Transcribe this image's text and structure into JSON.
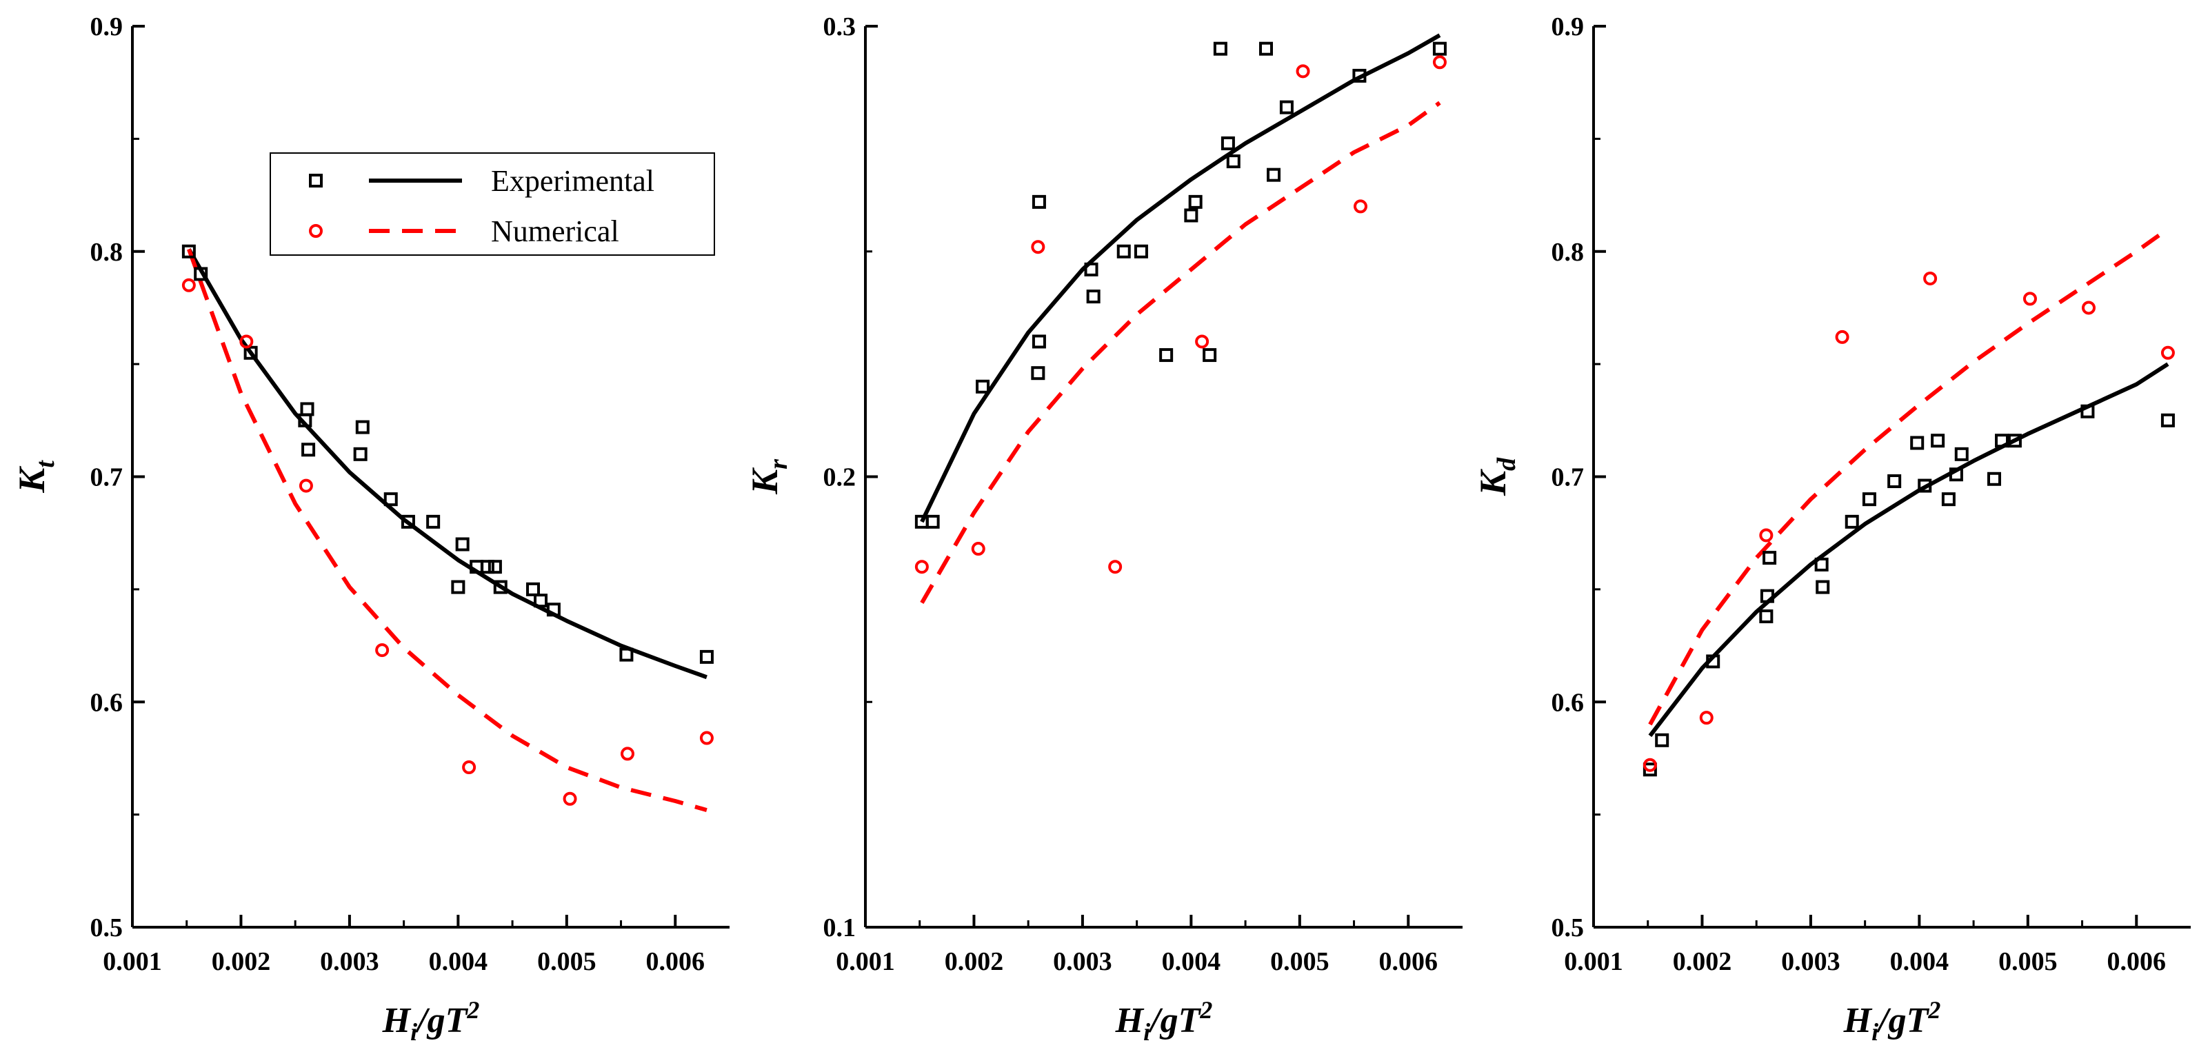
{
  "chart_data": [
    {
      "type": "scatter",
      "panel": "Kt",
      "ylabel": {
        "base": "K",
        "sub": "t"
      },
      "xlabel": {
        "base": "H",
        "sub": "i",
        "mid": "/gT",
        "sup": "2"
      },
      "xlim": [
        0.001,
        0.0065
      ],
      "ylim": [
        0.5,
        0.9
      ],
      "x_ticks": [
        "0.001",
        "0.002",
        "0.003",
        "0.004",
        "0.005",
        "0.006"
      ],
      "y_ticks": [
        "0.5",
        "0.6",
        "0.7",
        "0.8",
        "0.9"
      ],
      "legend": {
        "placement": "top-right",
        "entries": [
          {
            "label": "Experimental",
            "marker": "square",
            "line": "solid",
            "color": "#000000"
          },
          {
            "label": "Numerical",
            "marker": "circle",
            "line": "dashed",
            "color": "#ff0000"
          }
        ]
      },
      "series": [
        {
          "name": "Experimental",
          "color": "#000000",
          "marker": "square",
          "x": [
            0.00152,
            0.00163,
            0.00209,
            0.00259,
            0.00261,
            0.00262,
            0.0031,
            0.00312,
            0.00338,
            0.00354,
            0.00377,
            0.004,
            0.00404,
            0.00417,
            0.00427,
            0.00434,
            0.00439,
            0.00469,
            0.00476,
            0.00488,
            0.00555,
            0.00629
          ],
          "y": [
            0.8,
            0.79,
            0.755,
            0.725,
            0.73,
            0.712,
            0.71,
            0.722,
            0.69,
            0.68,
            0.68,
            0.651,
            0.67,
            0.66,
            0.66,
            0.66,
            0.651,
            0.65,
            0.645,
            0.641,
            0.621,
            0.62
          ],
          "fit": {
            "x": [
              0.00152,
              0.002,
              0.0025,
              0.003,
              0.0035,
              0.004,
              0.0045,
              0.005,
              0.0055,
              0.006,
              0.00629
            ],
            "y": [
              0.801,
              0.761,
              0.728,
              0.702,
              0.681,
              0.663,
              0.648,
              0.636,
              0.625,
              0.616,
              0.611
            ]
          }
        },
        {
          "name": "Numerical",
          "color": "#ff0000",
          "marker": "circle",
          "x": [
            0.00152,
            0.00205,
            0.0026,
            0.0033,
            0.0041,
            0.00503,
            0.00556,
            0.00629
          ],
          "y": [
            0.785,
            0.76,
            0.696,
            0.623,
            0.571,
            0.557,
            0.577,
            0.584
          ],
          "fit": {
            "x": [
              0.00152,
              0.002,
              0.0025,
              0.003,
              0.0035,
              0.004,
              0.0045,
              0.005,
              0.0055,
              0.006,
              0.00629
            ],
            "y": [
              0.801,
              0.737,
              0.688,
              0.651,
              0.624,
              0.603,
              0.585,
              0.571,
              0.562,
              0.556,
              0.552
            ]
          }
        }
      ]
    },
    {
      "type": "scatter",
      "panel": "Kr",
      "ylabel": {
        "base": "K",
        "sub": "r"
      },
      "xlabel": {
        "base": "H",
        "sub": "i",
        "mid": "/gT",
        "sup": "2"
      },
      "xlim": [
        0.001,
        0.0065
      ],
      "ylim": [
        0.1,
        0.3
      ],
      "x_ticks": [
        "0.001",
        "0.002",
        "0.003",
        "0.004",
        "0.005",
        "0.006"
      ],
      "y_ticks": [
        "0.1",
        "0.2",
        "0.3"
      ],
      "series": [
        {
          "name": "Experimental",
          "color": "#000000",
          "marker": "square",
          "x": [
            0.00152,
            0.00162,
            0.00208,
            0.0026,
            0.00259,
            0.0026,
            0.00308,
            0.0031,
            0.00338,
            0.00354,
            0.00377,
            0.004,
            0.00404,
            0.00417,
            0.00427,
            0.00434,
            0.00439,
            0.00469,
            0.00476,
            0.00488,
            0.00555,
            0.00629
          ],
          "y": [
            0.19,
            0.19,
            0.22,
            0.261,
            0.223,
            0.23,
            0.246,
            0.24,
            0.25,
            0.25,
            0.227,
            0.258,
            0.261,
            0.227,
            0.295,
            0.274,
            0.27,
            0.295,
            0.267,
            0.282,
            0.289,
            0.295
          ],
          "fit": {
            "x": [
              0.00152,
              0.002,
              0.0025,
              0.003,
              0.0035,
              0.004,
              0.0045,
              0.005,
              0.0055,
              0.006,
              0.00629
            ],
            "y": [
              0.19,
              0.214,
              0.232,
              0.246,
              0.257,
              0.266,
              0.274,
              0.281,
              0.288,
              0.294,
              0.298
            ]
          }
        },
        {
          "name": "Numerical",
          "color": "#ff0000",
          "marker": "circle",
          "x": [
            0.00152,
            0.00204,
            0.00259,
            0.0033,
            0.0041,
            0.00503,
            0.00556,
            0.00629
          ],
          "y": [
            0.18,
            0.184,
            0.251,
            0.18,
            0.23,
            0.29,
            0.26,
            0.292
          ],
          "fit": {
            "x": [
              0.00152,
              0.002,
              0.0025,
              0.003,
              0.0035,
              0.004,
              0.0045,
              0.005,
              0.0055,
              0.006,
              0.00629
            ],
            "y": [
              0.172,
              0.192,
              0.21,
              0.224,
              0.236,
              0.246,
              0.256,
              0.264,
              0.272,
              0.278,
              0.283
            ]
          }
        }
      ]
    },
    {
      "type": "scatter",
      "panel": "Kd",
      "ylabel": {
        "base": "K",
        "sub": "d"
      },
      "xlabel": {
        "base": "H",
        "sub": "i",
        "mid": "/gT",
        "sup": "2"
      },
      "xlim": [
        0.001,
        0.0065
      ],
      "ylim": [
        0.5,
        0.9
      ],
      "x_ticks": [
        "0.001",
        "0.002",
        "0.003",
        "0.004",
        "0.005",
        "0.006"
      ],
      "y_ticks": [
        "0.5",
        "0.6",
        "0.7",
        "0.8",
        "0.9"
      ],
      "series": [
        {
          "name": "Experimental",
          "color": "#000000",
          "marker": "square",
          "x": [
            0.00152,
            0.00163,
            0.0021,
            0.00259,
            0.0026,
            0.00262,
            0.0031,
            0.00311,
            0.00338,
            0.00354,
            0.00377,
            0.00398,
            0.00405,
            0.00417,
            0.00427,
            0.00434,
            0.00439,
            0.00469,
            0.00476,
            0.00488,
            0.00555,
            0.00629
          ],
          "y": [
            0.57,
            0.583,
            0.618,
            0.638,
            0.647,
            0.664,
            0.661,
            0.651,
            0.68,
            0.69,
            0.698,
            0.715,
            0.696,
            0.716,
            0.69,
            0.701,
            0.71,
            0.699,
            0.716,
            0.716,
            0.729,
            0.725
          ],
          "fit": {
            "x": [
              0.00152,
              0.002,
              0.0025,
              0.003,
              0.0035,
              0.004,
              0.0045,
              0.005,
              0.0055,
              0.006,
              0.00629
            ],
            "y": [
              0.585,
              0.615,
              0.64,
              0.661,
              0.679,
              0.694,
              0.707,
              0.719,
              0.73,
              0.741,
              0.75
            ]
          }
        },
        {
          "name": "Numerical",
          "color": "#ff0000",
          "marker": "circle",
          "x": [
            0.00152,
            0.00204,
            0.00259,
            0.00329,
            0.0041,
            0.00502,
            0.00556,
            0.00629
          ],
          "y": [
            0.572,
            0.593,
            0.674,
            0.762,
            0.788,
            0.779,
            0.775,
            0.755
          ],
          "fit": {
            "x": [
              0.00152,
              0.002,
              0.0025,
              0.003,
              0.0035,
              0.004,
              0.0045,
              0.005,
              0.0055,
              0.006,
              0.00629
            ],
            "y": [
              0.59,
              0.632,
              0.664,
              0.69,
              0.712,
              0.732,
              0.751,
              0.768,
              0.784,
              0.8,
              0.81
            ]
          }
        }
      ]
    }
  ]
}
